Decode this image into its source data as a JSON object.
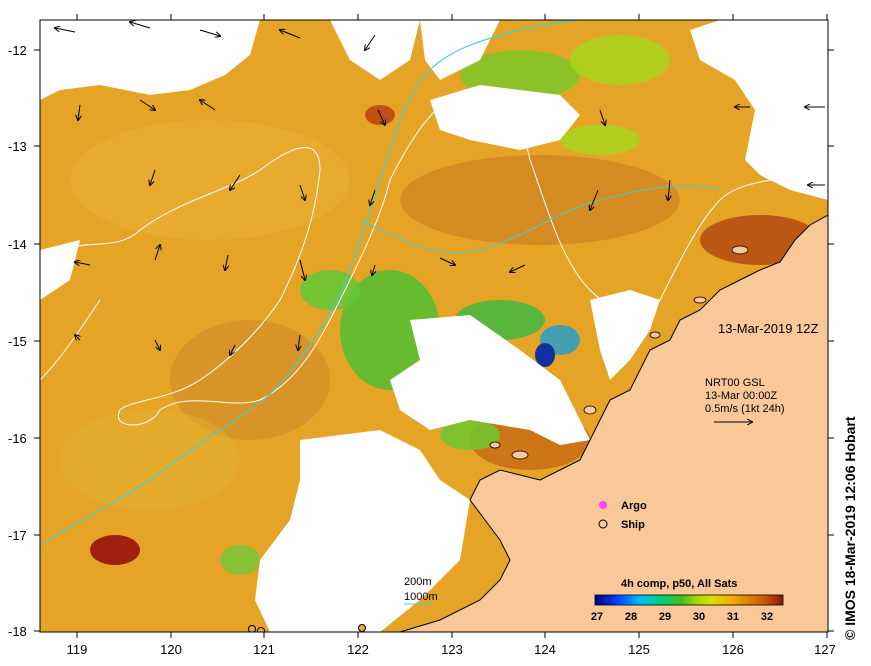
{
  "map": {
    "x_ticks": [
      "119",
      "120",
      "121",
      "122",
      "123",
      "124",
      "125",
      "126",
      "127"
    ],
    "y_ticks": [
      "-12",
      "-13",
      "-14",
      "-15",
      "-16",
      "-17",
      "-18"
    ],
    "date_label": "13-Mar-2019 12Z",
    "current_info": {
      "line1": "NRT00 GSL",
      "line2": "13-Mar 00:00Z",
      "line3": "0.5m/s (1kt 24h)"
    },
    "legend": {
      "argo": "Argo",
      "ship": "Ship"
    },
    "isobaths": {
      "line1": "200m",
      "line2": "1000m"
    },
    "colorbar": {
      "title": "4h comp, p50, All Sats",
      "ticks": [
        "27",
        "28",
        "29",
        "30",
        "31",
        "32"
      ],
      "colors": [
        "#000080",
        "#0040ff",
        "#00c0ff",
        "#00d070",
        "#40c020",
        "#a0d800",
        "#e0e000",
        "#f0b000",
        "#e08000",
        "#c05000",
        "#901010"
      ]
    },
    "colors": {
      "sst_base": "#e8a020",
      "land": "#f8c898",
      "isobath_200": "#ffffff",
      "isobath_1000": "#40d0d0",
      "argo": "#ff40ff"
    },
    "copyright": "© IMOS 18-Mar-2019 12:06 Hobart"
  }
}
